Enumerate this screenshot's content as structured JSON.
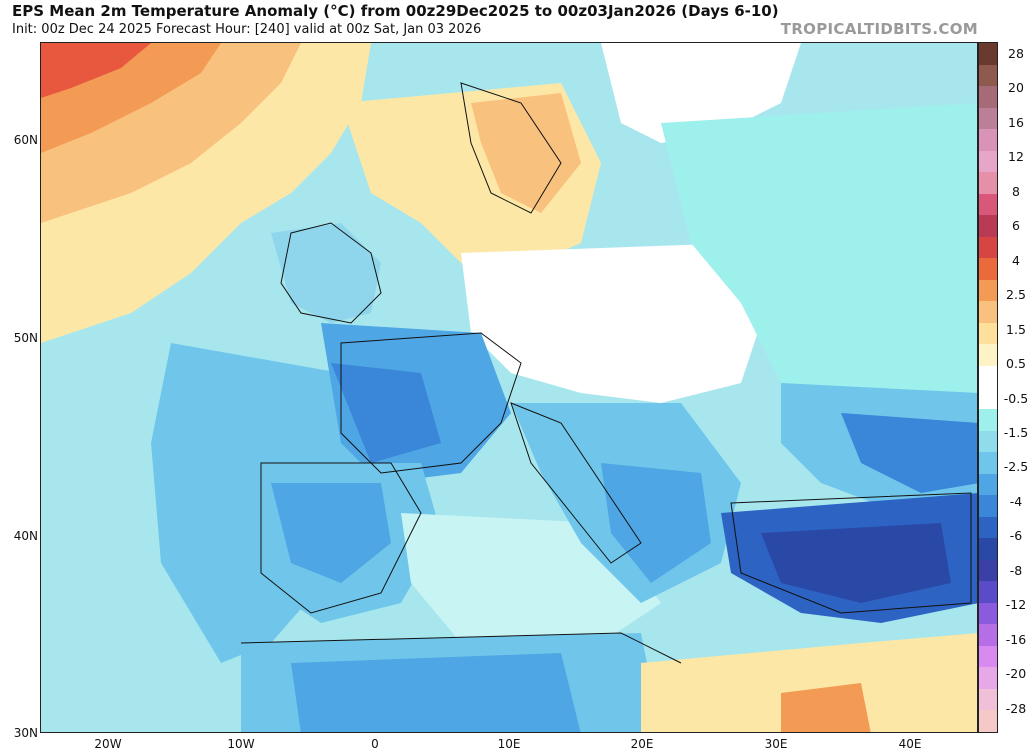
{
  "header": {
    "title": "EPS Mean 2m Temperature Anomaly (°C) from 00z29Dec2025 to 00z03Jan2026 (Days 6-10)",
    "subtitle": "Init: 00z Dec 24 2025   Forecast Hour: [240]   valid at 00z Sat, Jan 03 2026",
    "brand": "TROPICALTIDBITS.COM"
  },
  "map": {
    "lat_labels": [
      "60N",
      "50N",
      "40N",
      "30N"
    ],
    "lon_labels": [
      "20W",
      "10W",
      "0",
      "10E",
      "20E",
      "30E",
      "40E"
    ]
  },
  "colorbar": {
    "labels": [
      "28",
      "20",
      "16",
      "12",
      "8",
      "6",
      "4",
      "2.5",
      "1.5",
      "0.5",
      "-0.5",
      "-1.5",
      "-2.5",
      "-4",
      "-6",
      "-8",
      "-12",
      "-16",
      "-20",
      "-28"
    ],
    "colors": [
      "#6b3a2e",
      "#8e5a4e",
      "#a66b76",
      "#bb7f98",
      "#d893b6",
      "#e7a6c8",
      "#e58fa8",
      "#d9587a",
      "#b83a54",
      "#d64541",
      "#ea6a3c",
      "#f39a55",
      "#f8c27e",
      "#fce09c",
      "#fdf3c4",
      "#ffffff",
      "#ffffff",
      "#9ef0ec",
      "#8fdcec",
      "#6fc6ea",
      "#4ea6e4",
      "#3a86d8",
      "#2d64c4",
      "#2a49a6",
      "#3b3fa8",
      "#5a4cc8",
      "#8a5bdc",
      "#b56ee6",
      "#d98af0",
      "#e6a8e6",
      "#f0c0d8",
      "#f6c9c9"
    ]
  }
}
